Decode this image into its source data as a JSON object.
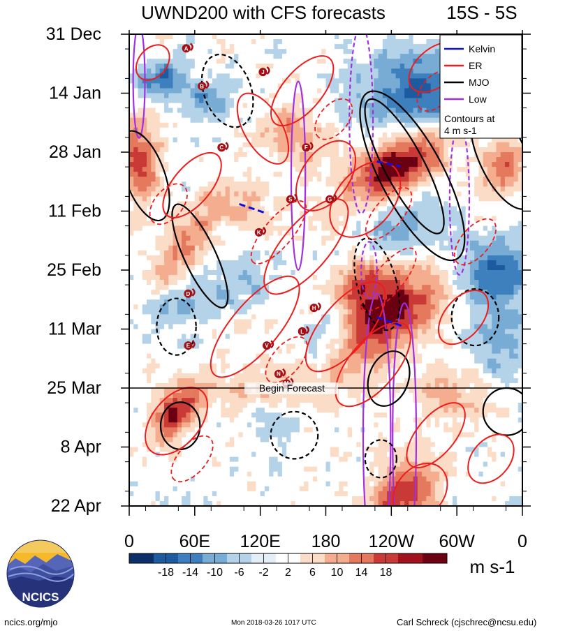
{
  "chart_data": {
    "type": "heatmap",
    "title": "UWND200 with CFS forecasts",
    "subtitle": "15S - 5S",
    "x_tick_labels": [
      "0",
      "60E",
      "120E",
      "180",
      "120W",
      "60W",
      "0"
    ],
    "y_tick_labels": [
      "31 Dec",
      "14 Jan",
      "28 Jan",
      "11 Feb",
      "25 Feb",
      "11 Mar",
      "25 Mar",
      "8 Apr",
      "22 Apr"
    ],
    "xlim": [
      0,
      360
    ],
    "forecast_label": "Begin Forecast",
    "forecast_date": "25 Mar",
    "colorbar": {
      "units": "m s-1",
      "tick_labels": [
        "-18",
        "-14",
        "-10",
        "-6",
        "-2",
        "2",
        "6",
        "10",
        "14",
        "18"
      ],
      "colors": [
        "#0b2f66",
        "#1d5aa0",
        "#3d80bd",
        "#78acd4",
        "#b5d3e8",
        "#e4eef6",
        "#ffffff",
        "#fbdcc7",
        "#f4ae8f",
        "#e4795e",
        "#c93a36",
        "#a0101d",
        "#6a0012"
      ]
    },
    "legend": {
      "entries": [
        {
          "label": "Kelvin",
          "color": "#1010dd"
        },
        {
          "label": "ER",
          "color": "#ee1c1c"
        },
        {
          "label": "MJO",
          "color": "#000000"
        },
        {
          "label": "Low",
          "color": "#a030e0"
        }
      ],
      "note": [
        "Contours at",
        "4 m s-1"
      ],
      "placement": "top-right"
    },
    "storm_markers": [
      "A",
      "B",
      "C",
      "D",
      "E",
      "F",
      "G",
      "H",
      "J",
      "K",
      "L",
      "M",
      "N",
      "S",
      "V"
    ]
  },
  "logo": {
    "text": "NCICS"
  },
  "footer": {
    "left": "ncics.org/mjo",
    "center": "Mon 2018-03-26 1017 UTC",
    "right": "Carl Schreck (cjschrec@ncsu.edu)"
  }
}
